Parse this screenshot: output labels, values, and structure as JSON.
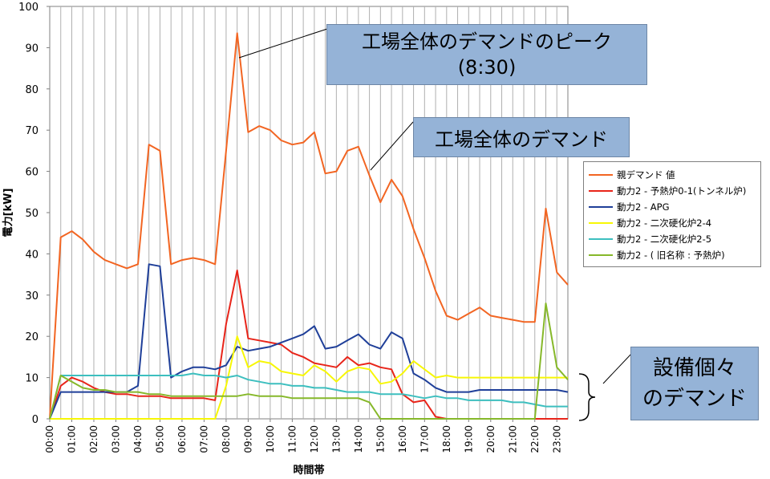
{
  "chart_data": {
    "type": "line",
    "xlabel": "時間帯",
    "ylabel": "電力[kW]",
    "ylim": [
      0,
      100
    ],
    "yticks": [
      0,
      10,
      20,
      30,
      40,
      50,
      60,
      70,
      80,
      90,
      100
    ],
    "x_tick_labels": [
      "00:00",
      "01:00",
      "02:00",
      "03:00",
      "04:00",
      "05:00",
      "06:00",
      "07:00",
      "08:00",
      "09:00",
      "10:00",
      "11:00",
      "12:00",
      "13:00",
      "14:00",
      "15:00",
      "16:00",
      "17:00",
      "18:00",
      "19:00",
      "20:00",
      "21:00",
      "22:00",
      "23:00"
    ],
    "x_interval_minutes": 30,
    "grid": true,
    "legend_position": "right",
    "series": [
      {
        "name": "親デマンド 値",
        "color": "#f26522",
        "values": [
          0,
          44,
          45.5,
          43.5,
          40.5,
          38.5,
          37.5,
          36.5,
          37.5,
          66.5,
          65,
          37.5,
          38.5,
          39,
          38.5,
          37.5,
          65,
          93.5,
          69.5,
          71,
          70,
          67.5,
          66.5,
          67,
          69.5,
          59.5,
          60,
          65,
          66,
          59,
          52.5,
          58,
          54,
          46,
          39,
          31,
          25,
          24,
          25.5,
          27,
          25,
          24.5,
          24,
          23.5,
          23.5,
          51,
          35.5,
          32.5
        ]
      },
      {
        "name": "動力2 - 予熱炉0-1(トンネル炉)",
        "color": "#e8251a",
        "values": [
          0,
          8,
          10,
          9,
          7.5,
          6.5,
          6,
          6,
          5.5,
          5.5,
          5.5,
          5,
          5,
          5,
          5,
          4.5,
          23,
          36,
          19.5,
          19,
          18.5,
          18,
          16,
          15,
          13.5,
          13,
          12.5,
          15,
          13,
          13.5,
          12.5,
          12,
          6,
          4,
          4.5,
          0.5,
          0,
          0,
          0,
          0,
          0,
          0,
          0,
          0,
          0,
          0,
          0,
          0
        ]
      },
      {
        "name": "動力2 - APG",
        "color": "#1f3f99",
        "values": [
          0,
          6.5,
          6.5,
          6.5,
          6.5,
          6.5,
          6.5,
          6.5,
          8,
          37.5,
          37,
          10,
          11.5,
          12.5,
          12.5,
          12,
          13,
          17.5,
          16.5,
          17,
          17.5,
          18.5,
          19.5,
          20.5,
          22.5,
          17,
          17.5,
          19,
          20.5,
          18,
          17,
          21,
          19.5,
          11,
          9.5,
          7.5,
          6.5,
          6.5,
          6.5,
          7,
          7,
          7,
          7,
          7,
          7,
          7,
          7,
          6.5
        ]
      },
      {
        "name": "動力2 - 二次硬化炉2-4",
        "color": "#f7f705",
        "values": [
          0,
          0,
          0,
          0,
          0,
          0,
          0,
          0,
          0,
          0,
          0,
          0,
          0,
          0,
          0,
          0,
          8,
          20,
          12.5,
          14,
          13.5,
          11.5,
          11,
          10.5,
          13,
          11.5,
          9,
          11.5,
          12.5,
          12,
          8.5,
          9,
          11,
          14,
          12,
          10,
          10.5,
          10,
          10,
          10,
          10,
          10,
          10,
          10,
          10,
          10,
          10,
          10
        ]
      },
      {
        "name": "動力2 - 二次硬化炉2-5",
        "color": "#3dbfbf",
        "values": [
          0,
          10.5,
          10.5,
          10.5,
          10.5,
          10.5,
          10.5,
          10.5,
          10.5,
          10.5,
          10.5,
          10.5,
          10.5,
          11,
          10.5,
          10.5,
          10,
          10.5,
          9.5,
          9,
          8.5,
          8.5,
          8,
          8,
          7.5,
          7.5,
          7,
          6.5,
          6.5,
          6.5,
          6,
          6,
          6,
          5.5,
          5,
          5.5,
          5,
          5,
          4.5,
          4.5,
          4.5,
          4.5,
          4,
          4,
          3.5,
          3,
          3,
          3
        ]
      },
      {
        "name": "動力2 - ( 旧名称 : 予熱炉)",
        "color": "#86b82a",
        "values": [
          0,
          10.5,
          9,
          7.5,
          7,
          7,
          6.5,
          6.5,
          6.5,
          6,
          6,
          5.5,
          5.5,
          5.5,
          5.5,
          5.5,
          5.5,
          5.5,
          6,
          5.5,
          5.5,
          5.5,
          5,
          5,
          5,
          5,
          5,
          5,
          5,
          4,
          0,
          0,
          0,
          0,
          0,
          0,
          0,
          0,
          0,
          0,
          0,
          0,
          0,
          0,
          0,
          28,
          12.5,
          9.5
        ]
      }
    ],
    "annotations": {
      "peak": [
        "工場全体のデマンドのピーク",
        "(8:30)"
      ],
      "total": "工場全体のデマンド",
      "individual": [
        "設備個々",
        "のデマンド"
      ]
    }
  }
}
